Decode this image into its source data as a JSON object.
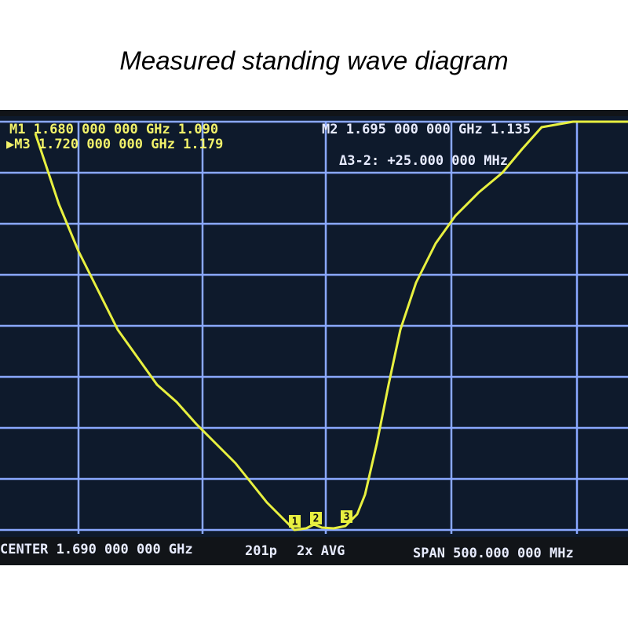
{
  "header": {
    "title": "Measured standing wave diagram"
  },
  "screen": {
    "markers": [
      {
        "line": "M1 1.680 000 000 GHz 1.090"
      },
      {
        "line": "M2 1.695 000 000 GHz 1.135"
      },
      {
        "line": "▶M3 1.720 000 000 GHz 1.179"
      }
    ],
    "delta": "Δ3-2: +25.000 000 MHz",
    "marker_tags": [
      "1",
      "2",
      "3"
    ],
    "footer": {
      "center": "CENTER 1.690 000 000 GHz",
      "points": "201p",
      "avg": "2x AVG",
      "span": "SPAN 500.000 000 MHz"
    }
  }
}
